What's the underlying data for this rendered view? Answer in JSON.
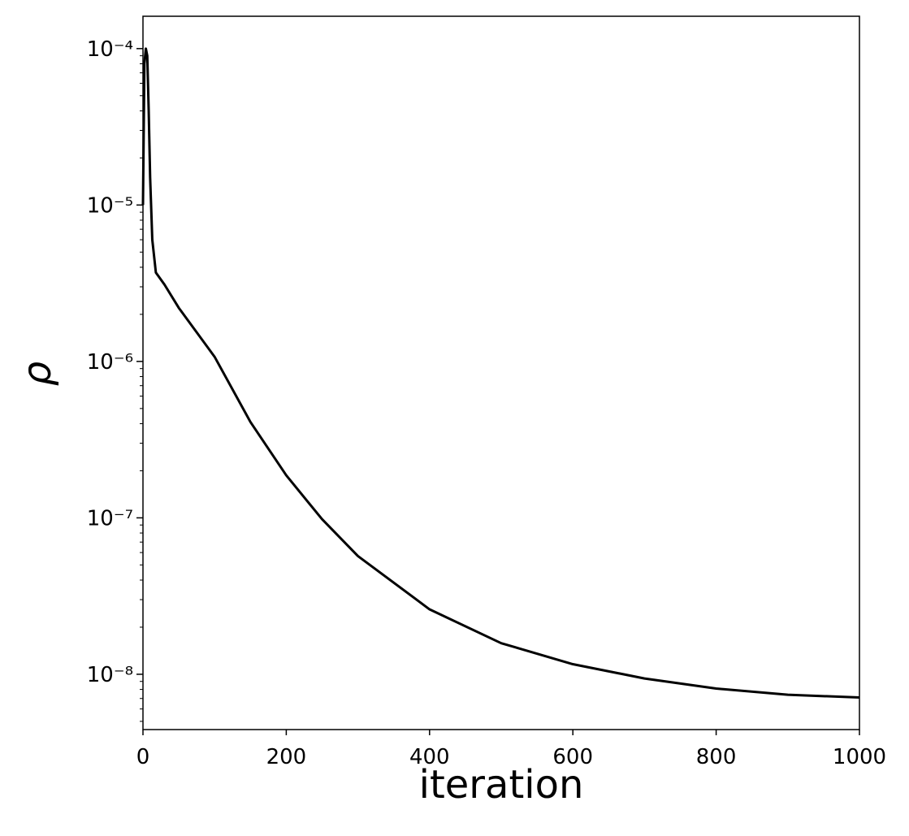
{
  "chart_data": {
    "type": "line",
    "x_label": "iteration",
    "y_label": "ρ",
    "x": [
      0,
      2,
      4,
      6,
      8,
      10,
      13,
      18,
      30,
      50,
      100,
      150,
      200,
      250,
      300,
      400,
      500,
      600,
      700,
      800,
      900,
      1000
    ],
    "series": [
      {
        "color": "#000000",
        "values": [
          1e-05,
          8e-05,
          0.0001,
          9e-05,
          4e-05,
          1.5e-05,
          6e-06,
          3.7e-06,
          3.1e-06,
          2.2e-06,
          1.07e-06,
          4.1e-07,
          1.87e-07,
          9.8e-08,
          5.7e-08,
          2.6e-08,
          1.58e-08,
          1.16e-08,
          9.4e-09,
          8.1e-09,
          7.4e-09,
          7.1e-09
        ]
      }
    ],
    "xlim": [
      0,
      1000
    ],
    "xticks": [
      0,
      200,
      400,
      600,
      800,
      1000
    ],
    "ylim": [
      4.43e-09,
      0.000161
    ],
    "yticks": [
      {
        "value": 1e-08,
        "label": "10⁻⁸"
      },
      {
        "value": 1e-07,
        "label": "10⁻⁷"
      },
      {
        "value": 1e-06,
        "label": "10⁻⁶"
      },
      {
        "value": 1e-05,
        "label": "10⁻⁵"
      },
      {
        "value": 0.0001,
        "label": "10⁻⁴"
      }
    ],
    "log_y": true,
    "grid": false
  }
}
